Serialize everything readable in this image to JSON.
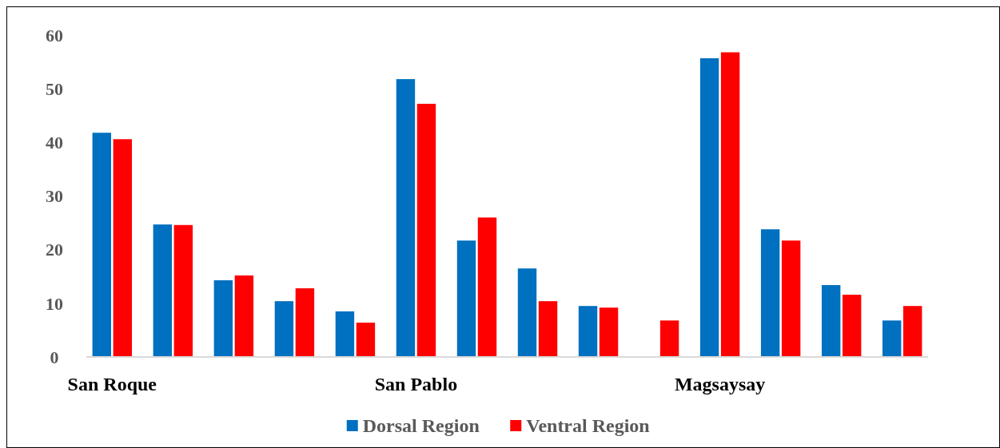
{
  "chart_data": {
    "type": "bar",
    "categories": [
      "San Roque",
      null,
      null,
      null,
      null,
      "San Pablo",
      null,
      null,
      null,
      null,
      "Magsaysay",
      null,
      null,
      null
    ],
    "series": [
      {
        "name": "Dorsal Region",
        "color": "#0070c0",
        "values": [
          41.8,
          24.7,
          14.3,
          10.4,
          8.5,
          51.8,
          21.7,
          16.5,
          9.5,
          null,
          55.7,
          23.8,
          13.4,
          6.8
        ]
      },
      {
        "name": "Ventral Region",
        "color": "#ff0000",
        "values": [
          40.6,
          24.6,
          15.2,
          12.8,
          6.4,
          47.2,
          26.0,
          10.4,
          9.2,
          6.8,
          56.8,
          21.7,
          11.6,
          9.5
        ]
      }
    ],
    "ylim": [
      0,
      60
    ],
    "yticks": [
      0,
      10,
      20,
      30,
      40,
      50,
      60
    ],
    "grid": false,
    "legend": "bottom"
  }
}
